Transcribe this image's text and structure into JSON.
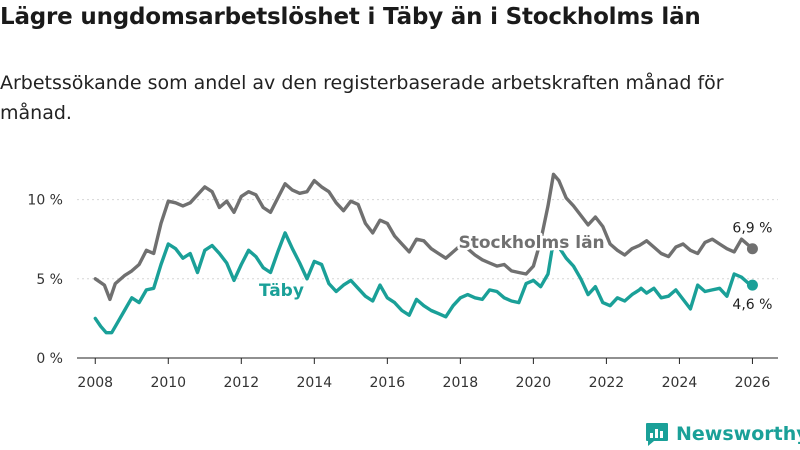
{
  "chart_data": {
    "type": "line",
    "title": "Lägre ungdomsarbetslöshet i Täby än i Stockholms län",
    "subtitle": "Arbetssökande som andel av den registerbaserade arbetskraften månad för månad.",
    "xlabel": "",
    "ylabel": "",
    "xlim": [
      2007.5,
      2026.7
    ],
    "ylim": [
      0,
      12.5
    ],
    "x_ticks": [
      2008,
      2010,
      2012,
      2014,
      2016,
      2018,
      2020,
      2022,
      2024,
      2026
    ],
    "x_tick_labels": [
      "2008",
      "2010",
      "2012",
      "2014",
      "2016",
      "2018",
      "2020",
      "2022",
      "2024",
      "2026"
    ],
    "y_ticks": [
      0,
      5,
      10
    ],
    "y_tick_labels": [
      "0 %",
      "5 %",
      "10 %"
    ],
    "grid": "horizontal",
    "series": [
      {
        "name": "Stockholms län",
        "color": "#707070",
        "end_label": "6,9 %",
        "points": [
          [
            2008.0,
            5.0
          ],
          [
            2008.25,
            4.6
          ],
          [
            2008.4,
            3.7
          ],
          [
            2008.55,
            4.7
          ],
          [
            2008.8,
            5.2
          ],
          [
            2009.0,
            5.5
          ],
          [
            2009.2,
            5.9
          ],
          [
            2009.4,
            6.8
          ],
          [
            2009.6,
            6.6
          ],
          [
            2009.8,
            8.5
          ],
          [
            2010.0,
            9.9
          ],
          [
            2010.2,
            9.8
          ],
          [
            2010.4,
            9.6
          ],
          [
            2010.6,
            9.8
          ],
          [
            2010.8,
            10.3
          ],
          [
            2011.0,
            10.8
          ],
          [
            2011.2,
            10.5
          ],
          [
            2011.4,
            9.5
          ],
          [
            2011.6,
            9.9
          ],
          [
            2011.8,
            9.2
          ],
          [
            2012.0,
            10.2
          ],
          [
            2012.2,
            10.5
          ],
          [
            2012.4,
            10.3
          ],
          [
            2012.6,
            9.5
          ],
          [
            2012.8,
            9.2
          ],
          [
            2013.0,
            10.1
          ],
          [
            2013.2,
            11.0
          ],
          [
            2013.4,
            10.6
          ],
          [
            2013.6,
            10.4
          ],
          [
            2013.8,
            10.5
          ],
          [
            2014.0,
            11.2
          ],
          [
            2014.2,
            10.8
          ],
          [
            2014.4,
            10.5
          ],
          [
            2014.6,
            9.8
          ],
          [
            2014.8,
            9.3
          ],
          [
            2015.0,
            9.9
          ],
          [
            2015.2,
            9.7
          ],
          [
            2015.4,
            8.5
          ],
          [
            2015.6,
            7.9
          ],
          [
            2015.8,
            8.7
          ],
          [
            2016.0,
            8.5
          ],
          [
            2016.2,
            7.7
          ],
          [
            2016.4,
            7.2
          ],
          [
            2016.6,
            6.7
          ],
          [
            2016.8,
            7.5
          ],
          [
            2017.0,
            7.4
          ],
          [
            2017.2,
            6.9
          ],
          [
            2017.4,
            6.6
          ],
          [
            2017.6,
            6.3
          ],
          [
            2017.8,
            6.7
          ],
          [
            2018.0,
            7.1
          ],
          [
            2018.2,
            6.9
          ],
          [
            2018.4,
            6.5
          ],
          [
            2018.6,
            6.2
          ],
          [
            2018.8,
            6.0
          ],
          [
            2019.0,
            5.8
          ],
          [
            2019.2,
            5.9
          ],
          [
            2019.4,
            5.5
          ],
          [
            2019.6,
            5.4
          ],
          [
            2019.8,
            5.3
          ],
          [
            2020.0,
            5.8
          ],
          [
            2020.2,
            7.4
          ],
          [
            2020.4,
            9.6
          ],
          [
            2020.55,
            11.6
          ],
          [
            2020.7,
            11.2
          ],
          [
            2020.9,
            10.1
          ],
          [
            2021.1,
            9.6
          ],
          [
            2021.3,
            9.0
          ],
          [
            2021.5,
            8.4
          ],
          [
            2021.7,
            8.9
          ],
          [
            2021.9,
            8.3
          ],
          [
            2022.1,
            7.2
          ],
          [
            2022.3,
            6.8
          ],
          [
            2022.5,
            6.5
          ],
          [
            2022.7,
            6.9
          ],
          [
            2022.9,
            7.1
          ],
          [
            2023.1,
            7.4
          ],
          [
            2023.3,
            7.0
          ],
          [
            2023.5,
            6.6
          ],
          [
            2023.7,
            6.4
          ],
          [
            2023.9,
            7.0
          ],
          [
            2024.1,
            7.2
          ],
          [
            2024.3,
            6.8
          ],
          [
            2024.5,
            6.6
          ],
          [
            2024.7,
            7.3
          ],
          [
            2024.9,
            7.5
          ],
          [
            2025.1,
            7.2
          ],
          [
            2025.3,
            6.9
          ],
          [
            2025.5,
            6.7
          ],
          [
            2025.7,
            7.5
          ],
          [
            2025.9,
            7.1
          ],
          [
            2026.0,
            6.9
          ]
        ]
      },
      {
        "name": "Täby",
        "color": "#1aa098",
        "end_label": "4,6 %",
        "points": [
          [
            2008.0,
            2.5
          ],
          [
            2008.15,
            2.0
          ],
          [
            2008.3,
            1.6
          ],
          [
            2008.45,
            1.6
          ],
          [
            2008.6,
            2.2
          ],
          [
            2008.8,
            3.0
          ],
          [
            2009.0,
            3.8
          ],
          [
            2009.2,
            3.5
          ],
          [
            2009.4,
            4.3
          ],
          [
            2009.6,
            4.4
          ],
          [
            2009.8,
            5.9
          ],
          [
            2010.0,
            7.2
          ],
          [
            2010.2,
            6.9
          ],
          [
            2010.4,
            6.3
          ],
          [
            2010.6,
            6.6
          ],
          [
            2010.8,
            5.4
          ],
          [
            2011.0,
            6.8
          ],
          [
            2011.2,
            7.1
          ],
          [
            2011.4,
            6.6
          ],
          [
            2011.6,
            6.0
          ],
          [
            2011.8,
            4.9
          ],
          [
            2012.0,
            5.9
          ],
          [
            2012.2,
            6.8
          ],
          [
            2012.4,
            6.4
          ],
          [
            2012.6,
            5.7
          ],
          [
            2012.8,
            5.4
          ],
          [
            2013.0,
            6.7
          ],
          [
            2013.2,
            7.9
          ],
          [
            2013.4,
            6.9
          ],
          [
            2013.6,
            6.0
          ],
          [
            2013.8,
            5.0
          ],
          [
            2014.0,
            6.1
          ],
          [
            2014.2,
            5.9
          ],
          [
            2014.4,
            4.7
          ],
          [
            2014.6,
            4.2
          ],
          [
            2014.8,
            4.6
          ],
          [
            2015.0,
            4.9
          ],
          [
            2015.2,
            4.4
          ],
          [
            2015.4,
            3.9
          ],
          [
            2015.6,
            3.6
          ],
          [
            2015.8,
            4.6
          ],
          [
            2016.0,
            3.8
          ],
          [
            2016.2,
            3.5
          ],
          [
            2016.4,
            3.0
          ],
          [
            2016.6,
            2.7
          ],
          [
            2016.8,
            3.7
          ],
          [
            2017.0,
            3.3
          ],
          [
            2017.2,
            3.0
          ],
          [
            2017.4,
            2.8
          ],
          [
            2017.6,
            2.6
          ],
          [
            2017.8,
            3.3
          ],
          [
            2018.0,
            3.8
          ],
          [
            2018.2,
            4.0
          ],
          [
            2018.4,
            3.8
          ],
          [
            2018.6,
            3.7
          ],
          [
            2018.8,
            4.3
          ],
          [
            2019.0,
            4.2
          ],
          [
            2019.2,
            3.8
          ],
          [
            2019.4,
            3.6
          ],
          [
            2019.6,
            3.5
          ],
          [
            2019.8,
            4.7
          ],
          [
            2020.0,
            4.9
          ],
          [
            2020.2,
            4.5
          ],
          [
            2020.4,
            5.3
          ],
          [
            2020.55,
            7.4
          ],
          [
            2020.7,
            7.0
          ],
          [
            2020.9,
            6.3
          ],
          [
            2021.1,
            5.8
          ],
          [
            2021.3,
            5.0
          ],
          [
            2021.5,
            4.0
          ],
          [
            2021.7,
            4.5
          ],
          [
            2021.9,
            3.5
          ],
          [
            2022.1,
            3.3
          ],
          [
            2022.3,
            3.8
          ],
          [
            2022.5,
            3.6
          ],
          [
            2022.7,
            4.0
          ],
          [
            2022.9,
            4.3
          ],
          [
            2022.95,
            4.4
          ],
          [
            2023.1,
            4.1
          ],
          [
            2023.3,
            4.4
          ],
          [
            2023.5,
            3.8
          ],
          [
            2023.7,
            3.9
          ],
          [
            2023.9,
            4.3
          ],
          [
            2024.1,
            3.7
          ],
          [
            2024.3,
            3.1
          ],
          [
            2024.5,
            4.6
          ],
          [
            2024.7,
            4.2
          ],
          [
            2024.9,
            4.3
          ],
          [
            2025.1,
            4.4
          ],
          [
            2025.3,
            3.9
          ],
          [
            2025.5,
            5.3
          ],
          [
            2025.7,
            5.1
          ],
          [
            2025.9,
            4.7
          ],
          [
            2026.0,
            4.6
          ]
        ]
      }
    ]
  },
  "brand": {
    "name": "Newsworthy",
    "color": "#1aa098"
  }
}
